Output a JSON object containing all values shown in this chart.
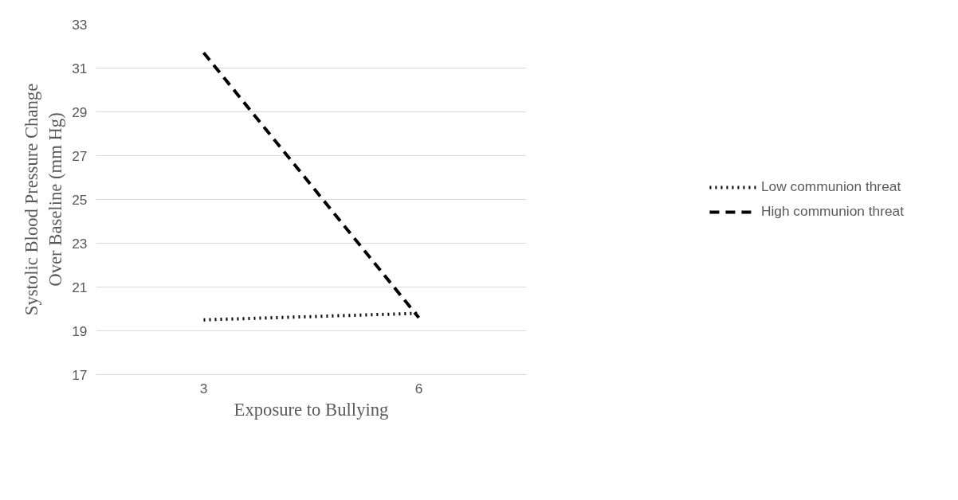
{
  "chart_data": {
    "type": "line",
    "xlabel": "Exposure to Bullying",
    "ylabel": "Systolic Blood Pressure Change\nOver Baseline (mm Hg)",
    "categories": [
      "3",
      "6"
    ],
    "series": [
      {
        "name": "Low communion threat",
        "color": "#000000",
        "line_style": "dotted",
        "values": [
          19.5,
          19.8
        ]
      },
      {
        "name": "High communion threat",
        "color": "#000000",
        "line_style": "dashed",
        "values": [
          31.7,
          19.6
        ]
      }
    ],
    "ylim": [
      17,
      33
    ],
    "yticks": [
      17,
      19,
      21,
      23,
      25,
      27,
      29,
      31,
      33
    ],
    "grid": "y",
    "legend": "right",
    "marker": "none"
  }
}
